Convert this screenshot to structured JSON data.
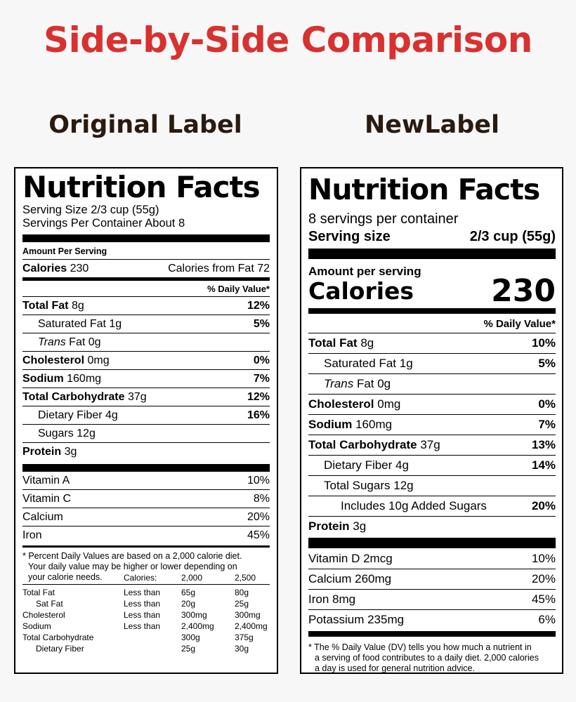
{
  "page": {
    "title": "Side-by-Side Comparison",
    "left_heading": "Original Label",
    "right_heading": "NewLabel"
  },
  "original": {
    "title": "Nutrition Facts",
    "serving_size": "Serving Size 2/3 cup (55g)",
    "servings_per_container": "Servings Per Container About 8",
    "amount_per_serving": "Amount Per Serving",
    "calories_label": "Calories",
    "calories_value": "230",
    "calories_from_fat": "Calories from Fat 72",
    "dv_header": "% Daily Value*",
    "nutrients": [
      {
        "name": "Total Fat",
        "amount": "8g",
        "dv": "12%"
      },
      {
        "name": "Saturated Fat",
        "amount": "1g",
        "dv": "5%"
      },
      {
        "name": "Trans",
        "amount": "Fat 0g",
        "dv": ""
      },
      {
        "name": "Cholesterol",
        "amount": "0mg",
        "dv": "0%"
      },
      {
        "name": "Sodium",
        "amount": "160mg",
        "dv": "7%"
      },
      {
        "name": "Total Carbohydrate",
        "amount": "37g",
        "dv": "12%"
      },
      {
        "name": "Dietary Fiber",
        "amount": "4g",
        "dv": "16%"
      },
      {
        "name": "Sugars",
        "amount": "12g",
        "dv": ""
      },
      {
        "name": "Protein",
        "amount": "3g",
        "dv": ""
      }
    ],
    "vitamins": [
      {
        "name": "Vitamin A",
        "dv": "10%"
      },
      {
        "name": "Vitamin C",
        "dv": "8%"
      },
      {
        "name": "Calcium",
        "dv": "20%"
      },
      {
        "name": "Iron",
        "dv": "45%"
      }
    ],
    "footnote": "* Percent Daily Values are based on a 2,000 calorie diet.",
    "footnote2": "Your daily value may be higher or lower depending on",
    "footnote3": "your calorie needs.",
    "footer_table": {
      "header": [
        "Calories:",
        "2,000",
        "2,500"
      ],
      "rows": [
        [
          "Total Fat",
          "Less than",
          "65g",
          "80g"
        ],
        [
          "Sat Fat",
          "Less than",
          "20g",
          "25g"
        ],
        [
          "Cholesterol",
          "Less than",
          "300mg",
          "300mg"
        ],
        [
          "Sodium",
          "Less than",
          "2,400mg",
          "2,400mg"
        ],
        [
          "Total Carbohydrate",
          "",
          "300g",
          "375g"
        ],
        [
          "Dietary Fiber",
          "",
          "25g",
          "30g"
        ]
      ]
    }
  },
  "new": {
    "title": "Nutrition Facts",
    "servings_per_container": "8 servings per container",
    "serving_size_label": "Serving size",
    "serving_size_value": "2/3 cup (55g)",
    "amount_per_serving": "Amount per serving",
    "calories_label": "Calories",
    "calories_value": "230",
    "dv_header": "% Daily Value*",
    "nutrients": [
      {
        "name": "Total Fat",
        "amount": "8g",
        "dv": "10%"
      },
      {
        "name": "Saturated Fat",
        "amount": "1g",
        "dv": "5%"
      },
      {
        "name": "Trans",
        "amount": "Fat 0g",
        "dv": ""
      },
      {
        "name": "Cholesterol",
        "amount": "0mg",
        "dv": "0%"
      },
      {
        "name": "Sodium",
        "amount": "160mg",
        "dv": "7%"
      },
      {
        "name": "Total Carbohydrate",
        "amount": "37g",
        "dv": "13%"
      },
      {
        "name": "Dietary Fiber",
        "amount": "4g",
        "dv": "14%"
      },
      {
        "name": "Total Sugars",
        "amount": "12g",
        "dv": ""
      },
      {
        "name": "Includes 10g Added Sugars",
        "amount": "",
        "dv": "20%"
      },
      {
        "name": "Protein",
        "amount": "3g",
        "dv": ""
      }
    ],
    "vitamins": [
      {
        "name": "Vitamin D 2mcg",
        "dv": "10%"
      },
      {
        "name": "Calcium 260mg",
        "dv": "20%"
      },
      {
        "name": "Iron 8mg",
        "dv": "45%"
      },
      {
        "name": "Potassium 235mg",
        "dv": "6%"
      }
    ],
    "footnote": "* The % Daily Value (DV) tells you how much a nutrient in",
    "footnote2": "a serving of food contributes to a daily diet. 2,000 calories",
    "footnote3": "a day is used for general nutrition advice."
  }
}
